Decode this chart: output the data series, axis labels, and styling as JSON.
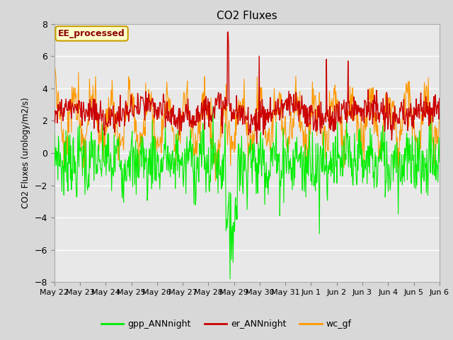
{
  "title": "CO2 Fluxes",
  "ylabel": "CO2 Fluxes (urology/m2/s)",
  "ylim": [
    -8,
    8
  ],
  "yticks": [
    -8,
    -6,
    -4,
    -2,
    0,
    2,
    4,
    6,
    8
  ],
  "fig_bg_color": "#d8d8d8",
  "plot_bg_color": "#e8e8e8",
  "legend_label": "EE_processed",
  "legend_text_color": "#8b0000",
  "legend_bg": "#ffffcc",
  "legend_border": "#c8a000",
  "line_colors": {
    "gpp": "#00ee00",
    "er": "#cc0000",
    "wc": "#ff9900"
  },
  "legend_entries": [
    "gpp_ANNnight",
    "er_ANNnight",
    "wc_gf"
  ],
  "legend_colors": [
    "#00ee00",
    "#cc0000",
    "#ff9900"
  ],
  "n_points": 768,
  "seed": 7,
  "n_days": 16,
  "x_tick_labels": [
    "May 22",
    "May 23",
    "May 24",
    "May 25",
    "May 26",
    "May 27",
    "May 28",
    "May 29",
    "May 30",
    "May 31",
    "Jun 1",
    "Jun 2",
    "Jun 3",
    "Jun 4",
    "Jun 5",
    "Jun 6"
  ]
}
